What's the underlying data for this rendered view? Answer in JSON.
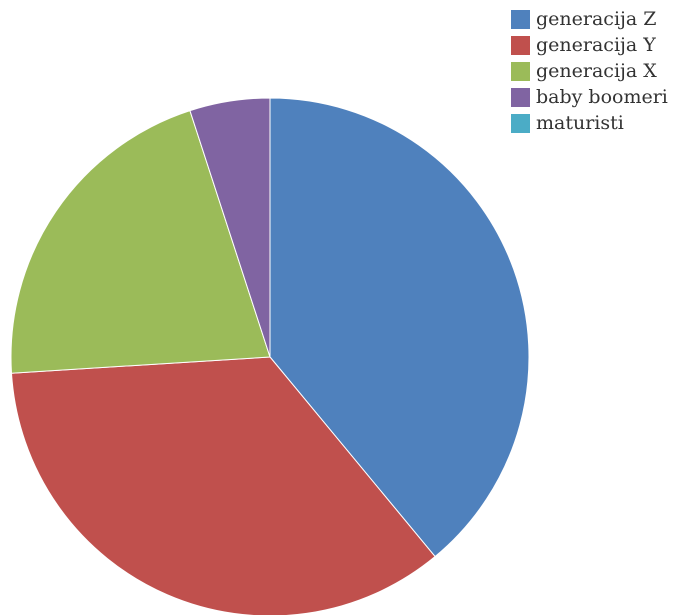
{
  "chart_data": {
    "type": "pie",
    "title": "",
    "categories": [
      "generacija Z",
      "generacija Y",
      "generacija X",
      "baby boomeri",
      "maturisti"
    ],
    "values": [
      39,
      35,
      21,
      5,
      0
    ],
    "colors": [
      "#4F81BD",
      "#C0504D",
      "#9BBB59",
      "#8064A2",
      "#4BACC6"
    ],
    "legend": {
      "position": "top-right",
      "items": [
        {
          "label": "generacija Z",
          "color": "#4F81BD"
        },
        {
          "label": "generacija Y",
          "color": "#C0504D"
        },
        {
          "label": "generacija X",
          "color": "#9BBB59"
        },
        {
          "label": "baby boomeri",
          "color": "#8064A2"
        },
        {
          "label": "maturisti",
          "color": "#4BACC6"
        }
      ]
    }
  }
}
